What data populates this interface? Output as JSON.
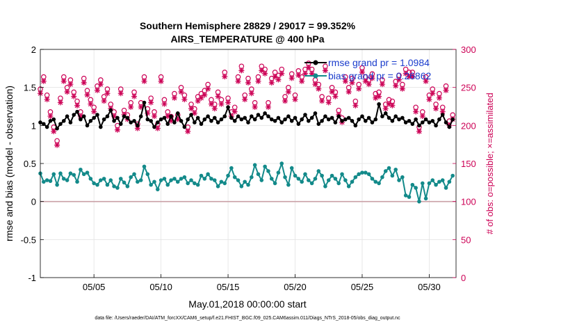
{
  "chart_data": {
    "type": "line",
    "title_line1": "Southern Hemisphere 28829 / 29017 = 99.352%",
    "title_line2": "AIRS_TEMPERATURE @ 400 hPa",
    "xlabel": "May.01,2018 00:00:00 start",
    "ylabel_left": "rmse and bias (model - observation)",
    "ylabel_right": "# of obs: o=possible; ×=assimilated",
    "data_file": "data file: /Users/raeder/DAI/ATM_forcXX/CAM6_setup/f.e21.FHIST_BGC.f09_025.CAM6assim.011/Diags_NTrS_2018-05/obs_diag_output.nc",
    "x_tick_labels": [
      "05/05",
      "05/10",
      "05/15",
      "05/20",
      "05/25",
      "05/30"
    ],
    "x_tick_values": [
      5,
      10,
      15,
      20,
      25,
      30
    ],
    "xlim": [
      1,
      32
    ],
    "ylim_left": [
      -1,
      2
    ],
    "y_ticks_left": [
      "-1",
      "-0.5",
      "0",
      "0.5",
      "1",
      "1.5",
      "2"
    ],
    "ylim_right": [
      0,
      300
    ],
    "y_ticks_right": [
      "0",
      "50",
      "100",
      "150",
      "200",
      "250",
      "300"
    ],
    "grid": true,
    "legend_position": "top-right",
    "colors": {
      "rmse": "#000000",
      "bias": "#138a8a",
      "obs": "#cc0055",
      "zero_line": "#c9a0a6",
      "legend_text": "#1a3ccc"
    },
    "series": [
      {
        "name": "rmse grand pr = 1.0984",
        "axis": "left",
        "x": [
          1.0,
          1.25,
          1.5,
          1.75,
          2.0,
          2.25,
          2.5,
          2.75,
          3.0,
          3.25,
          3.5,
          3.75,
          4.0,
          4.25,
          4.5,
          4.75,
          5.0,
          5.25,
          5.5,
          5.75,
          6.0,
          6.25,
          6.5,
          6.75,
          7.0,
          7.25,
          7.5,
          7.75,
          8.0,
          8.25,
          8.5,
          8.75,
          9.0,
          9.25,
          9.5,
          9.75,
          10.0,
          10.25,
          10.5,
          10.75,
          11.0,
          11.25,
          11.5,
          11.75,
          12.0,
          12.25,
          12.5,
          12.75,
          13.0,
          13.25,
          13.5,
          13.75,
          14.0,
          14.25,
          14.5,
          14.75,
          15.0,
          15.25,
          15.5,
          15.75,
          16.0,
          16.25,
          16.5,
          16.75,
          17.0,
          17.25,
          17.5,
          17.75,
          18.0,
          18.25,
          18.5,
          18.75,
          19.0,
          19.25,
          19.5,
          19.75,
          20.0,
          20.25,
          20.5,
          20.75,
          21.0,
          21.25,
          21.5,
          21.75,
          22.0,
          22.25,
          22.5,
          22.75,
          23.0,
          23.25,
          23.5,
          23.75,
          24.0,
          24.25,
          24.5,
          24.75,
          25.0,
          25.25,
          25.5,
          25.75,
          26.0,
          26.25,
          26.5,
          26.75,
          27.0,
          27.25,
          27.5,
          27.75,
          28.0,
          28.25,
          28.5,
          28.75,
          29.0,
          29.25,
          29.5,
          29.75,
          30.0,
          30.25,
          30.5,
          30.75,
          31.0,
          31.25,
          31.5,
          31.75
        ],
        "y": [
          1.04,
          1.02,
          0.98,
          1.06,
          1.08,
          0.96,
          1.02,
          1.06,
          1.12,
          1.04,
          1.14,
          1.18,
          1.08,
          1.12,
          1.0,
          1.06,
          1.1,
          1.14,
          0.98,
          1.08,
          1.12,
          1.2,
          1.06,
          1.1,
          1.02,
          1.12,
          1.1,
          1.04,
          1.06,
          1.0,
          1.12,
          1.3,
          1.08,
          1.06,
          0.98,
          1.04,
          1.08,
          1.1,
          1.02,
          1.12,
          1.04,
          1.16,
          1.06,
          0.98,
          1.08,
          1.14,
          1.04,
          1.1,
          1.02,
          1.08,
          1.12,
          1.06,
          1.1,
          1.04,
          1.08,
          1.12,
          1.24,
          1.1,
          1.06,
          1.12,
          1.08,
          1.1,
          1.04,
          1.12,
          1.08,
          1.14,
          1.1,
          1.16,
          1.12,
          1.08,
          1.06,
          1.1,
          1.04,
          1.08,
          1.12,
          1.06,
          1.1,
          1.02,
          1.08,
          1.14,
          1.06,
          1.1,
          1.16,
          1.02,
          1.06,
          1.12,
          1.08,
          1.1,
          1.04,
          1.12,
          1.06,
          1.08,
          1.1,
          1.06,
          1.0,
          1.08,
          1.12,
          1.06,
          1.1,
          1.04,
          1.08,
          1.28,
          1.12,
          1.16,
          1.1,
          1.06,
          1.12,
          1.08,
          1.1,
          1.04,
          1.06,
          1.02,
          1.08,
          1.0,
          1.04,
          1.08,
          1.04,
          1.06,
          1.0,
          1.08,
          1.14,
          1.04,
          0.98,
          1.08
        ],
        "marker": "filled-circle"
      },
      {
        "name": "bias grand pr = 0.26862",
        "axis": "left",
        "x": [
          1.0,
          1.25,
          1.5,
          1.75,
          2.0,
          2.25,
          2.5,
          2.75,
          3.0,
          3.25,
          3.5,
          3.75,
          4.0,
          4.25,
          4.5,
          4.75,
          5.0,
          5.25,
          5.5,
          5.75,
          6.0,
          6.25,
          6.5,
          6.75,
          7.0,
          7.25,
          7.5,
          7.75,
          8.0,
          8.25,
          8.5,
          8.75,
          9.0,
          9.25,
          9.5,
          9.75,
          10.0,
          10.25,
          10.5,
          10.75,
          11.0,
          11.25,
          11.5,
          11.75,
          12.0,
          12.25,
          12.5,
          12.75,
          13.0,
          13.25,
          13.5,
          13.75,
          14.0,
          14.25,
          14.5,
          14.75,
          15.0,
          15.25,
          15.5,
          15.75,
          16.0,
          16.25,
          16.5,
          16.75,
          17.0,
          17.25,
          17.5,
          17.75,
          18.0,
          18.25,
          18.5,
          18.75,
          19.0,
          19.25,
          19.5,
          19.75,
          20.0,
          20.25,
          20.5,
          20.75,
          21.0,
          21.25,
          21.5,
          21.75,
          22.0,
          22.25,
          22.5,
          22.75,
          23.0,
          23.25,
          23.5,
          23.75,
          24.0,
          24.25,
          24.5,
          24.75,
          25.0,
          25.25,
          25.5,
          25.75,
          26.0,
          26.25,
          26.5,
          26.75,
          27.0,
          27.25,
          27.5,
          27.75,
          28.0,
          28.25,
          28.5,
          28.75,
          29.0,
          29.25,
          29.5,
          29.75,
          30.0,
          30.25,
          30.5,
          30.75,
          31.0,
          31.25,
          31.5,
          31.75
        ],
        "y": [
          0.37,
          0.26,
          0.28,
          0.27,
          0.36,
          0.22,
          0.37,
          0.3,
          0.28,
          0.37,
          0.35,
          0.26,
          0.42,
          0.36,
          0.38,
          0.3,
          0.24,
          0.22,
          0.28,
          0.3,
          0.22,
          0.28,
          0.2,
          0.18,
          0.3,
          0.25,
          0.2,
          0.32,
          0.36,
          0.26,
          0.28,
          0.46,
          0.36,
          0.22,
          0.26,
          0.16,
          0.28,
          0.3,
          0.22,
          0.28,
          0.3,
          0.26,
          0.3,
          0.32,
          0.24,
          0.28,
          0.24,
          0.22,
          0.34,
          0.3,
          0.36,
          0.3,
          0.28,
          0.2,
          0.26,
          0.24,
          0.34,
          0.44,
          0.32,
          0.28,
          0.2,
          0.26,
          0.22,
          0.32,
          0.48,
          0.36,
          0.28,
          0.46,
          0.4,
          0.3,
          0.24,
          0.38,
          0.5,
          0.32,
          0.22,
          0.44,
          0.34,
          0.3,
          0.26,
          0.36,
          0.28,
          0.24,
          0.3,
          0.4,
          0.34,
          0.2,
          0.28,
          0.34,
          0.3,
          0.24,
          0.36,
          0.28,
          0.2,
          0.26,
          0.32,
          0.36,
          0.38,
          0.38,
          0.36,
          0.3,
          0.26,
          0.24,
          0.32,
          0.4,
          0.44,
          0.34,
          0.42,
          0.28,
          0.32,
          0.08,
          0.06,
          0.22,
          0.18,
          0.0,
          0.24,
          0.04,
          0.24,
          0.28,
          0.22,
          0.26,
          0.28,
          0.18,
          0.26,
          0.34
        ],
        "marker": "filled-circle"
      },
      {
        "name": "# of obs possible",
        "axis": "right",
        "x": [
          1.0,
          1.25,
          1.5,
          1.75,
          2.0,
          2.25,
          2.5,
          2.75,
          3.0,
          3.25,
          3.5,
          3.75,
          4.0,
          4.25,
          4.5,
          4.75,
          5.0,
          5.25,
          5.5,
          5.75,
          6.0,
          6.25,
          6.5,
          6.75,
          7.0,
          7.25,
          7.5,
          7.75,
          8.0,
          8.25,
          8.5,
          8.75,
          9.0,
          9.25,
          9.5,
          9.75,
          10.0,
          10.25,
          10.5,
          10.75,
          11.0,
          11.25,
          11.5,
          11.75,
          12.0,
          12.25,
          12.5,
          12.75,
          13.0,
          13.25,
          13.5,
          13.75,
          14.0,
          14.25,
          14.5,
          14.75,
          15.0,
          15.25,
          15.5,
          15.75,
          16.0,
          16.25,
          16.5,
          16.75,
          17.0,
          17.25,
          17.5,
          17.75,
          18.0,
          18.25,
          18.5,
          18.75,
          19.0,
          19.25,
          19.5,
          19.75,
          20.0,
          20.25,
          20.5,
          20.75,
          21.0,
          21.25,
          21.5,
          21.75,
          22.0,
          22.25,
          22.5,
          22.75,
          23.0,
          23.25,
          23.5,
          23.75,
          24.0,
          24.25,
          24.5,
          24.75,
          25.0,
          25.25,
          25.5,
          25.75,
          26.0,
          26.25,
          26.5,
          26.75,
          27.0,
          27.25,
          27.5,
          27.75,
          28.0,
          28.25,
          28.5,
          28.75,
          29.0,
          29.25,
          29.5,
          29.75,
          30.0,
          30.25,
          30.5,
          30.75,
          31.0,
          31.25,
          31.5,
          31.75
        ],
        "y": [
          246,
          262,
          238,
          216,
          196,
          178,
          234,
          262,
          248,
          258,
          242,
          230,
          216,
          260,
          244,
          232,
          222,
          250,
          258,
          236,
          246,
          226,
          216,
          198,
          246,
          218,
          212,
          228,
          242,
          200,
          228,
          262,
          220,
          234,
          216,
          200,
          262,
          232,
          216,
          210,
          240,
          212,
          248,
          238,
          196,
          226,
          220,
          236,
          240,
          244,
          252,
          232,
          226,
          242,
          232,
          268,
          234,
          216,
          222,
          262,
          276,
          238,
          260,
          246,
          228,
          262,
          276,
          272,
          228,
          260,
          268,
          264,
          272,
          236,
          248,
          266,
          238,
          270,
          262,
          272,
          280,
          272,
          258,
          252,
          236,
          276,
          234,
          248,
          242,
          218,
          208,
          262,
          248,
          260,
          230,
          252,
          274,
          262,
          258,
          266,
          240,
          242,
          258,
          226,
          232,
          230,
          256,
          264,
          252,
          272,
          268,
          268,
          222,
          196,
          216,
          262,
          238,
          246,
          226,
          240,
          222,
          250,
          204,
          212
        ],
        "marker": "open-circle"
      },
      {
        "name": "# of obs assimilated",
        "axis": "right",
        "x": [
          1.0,
          1.25,
          1.5,
          1.75,
          2.0,
          2.25,
          2.5,
          2.75,
          3.0,
          3.25,
          3.5,
          3.75,
          4.0,
          4.25,
          4.5,
          4.75,
          5.0,
          5.25,
          5.5,
          5.75,
          6.0,
          6.25,
          6.5,
          6.75,
          7.0,
          7.25,
          7.5,
          7.75,
          8.0,
          8.25,
          8.5,
          8.75,
          9.0,
          9.25,
          9.5,
          9.75,
          10.0,
          10.25,
          10.5,
          10.75,
          11.0,
          11.25,
          11.5,
          11.75,
          12.0,
          12.25,
          12.5,
          12.75,
          13.0,
          13.25,
          13.5,
          13.75,
          14.0,
          14.25,
          14.5,
          14.75,
          15.0,
          15.25,
          15.5,
          15.75,
          16.0,
          16.25,
          16.5,
          16.75,
          17.0,
          17.25,
          17.5,
          17.75,
          18.0,
          18.25,
          18.5,
          18.75,
          19.0,
          19.25,
          19.5,
          19.75,
          20.0,
          20.25,
          20.5,
          20.75,
          21.0,
          21.25,
          21.5,
          21.75,
          22.0,
          22.25,
          22.5,
          22.75,
          23.0,
          23.25,
          23.5,
          23.75,
          24.0,
          24.25,
          24.5,
          24.75,
          25.0,
          25.25,
          25.5,
          25.75,
          26.0,
          26.25,
          26.5,
          26.75,
          27.0,
          27.25,
          27.5,
          27.75,
          28.0,
          28.25,
          28.5,
          28.75,
          29.0,
          29.25,
          29.5,
          29.75,
          30.0,
          30.25,
          30.5,
          30.75,
          31.0,
          31.25,
          31.5,
          31.75
        ],
        "y": [
          244,
          260,
          236,
          214,
          194,
          176,
          232,
          260,
          246,
          256,
          240,
          228,
          214,
          258,
          242,
          230,
          220,
          248,
          256,
          234,
          244,
          224,
          214,
          196,
          244,
          216,
          210,
          226,
          240,
          198,
          226,
          260,
          218,
          232,
          214,
          198,
          260,
          230,
          214,
          208,
          238,
          210,
          246,
          236,
          194,
          224,
          218,
          234,
          238,
          242,
          250,
          230,
          224,
          240,
          230,
          266,
          232,
          214,
          220,
          260,
          274,
          236,
          258,
          244,
          226,
          260,
          274,
          270,
          226,
          258,
          266,
          262,
          270,
          234,
          246,
          264,
          236,
          268,
          260,
          270,
          278,
          270,
          256,
          250,
          234,
          274,
          232,
          246,
          240,
          216,
          206,
          260,
          246,
          258,
          228,
          250,
          272,
          260,
          256,
          264,
          238,
          240,
          256,
          224,
          230,
          228,
          254,
          262,
          250,
          270,
          266,
          266,
          220,
          194,
          214,
          260,
          236,
          244,
          224,
          238,
          220,
          248,
          202,
          210
        ],
        "marker": "cross"
      }
    ]
  }
}
